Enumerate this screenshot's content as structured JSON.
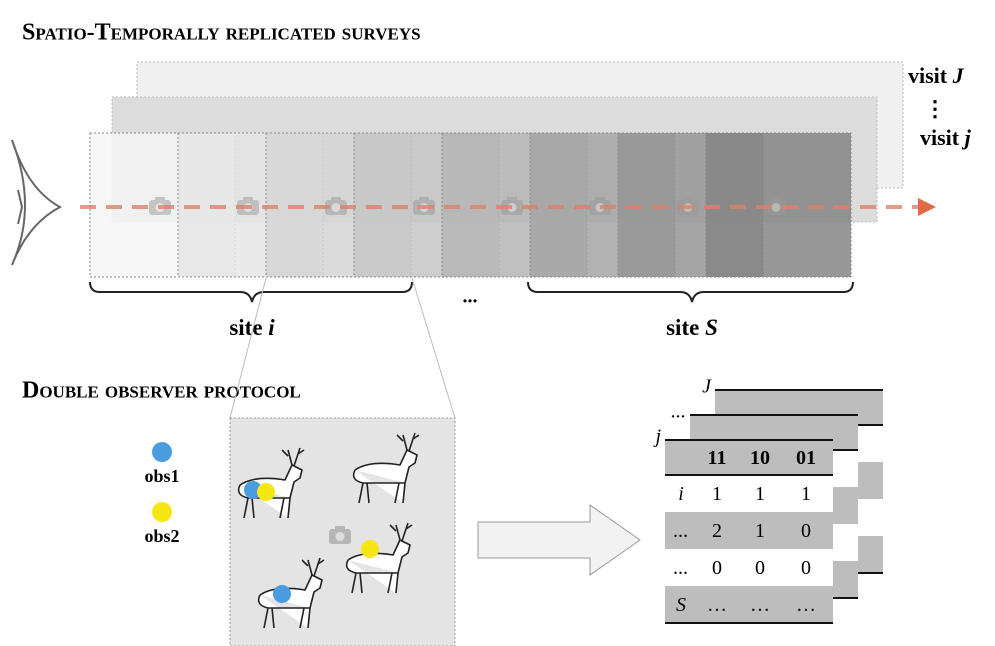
{
  "top_section": {
    "title": "Spatio-Temporally replicated surveys",
    "visit_last": {
      "word": "visit",
      "index": "J"
    },
    "visit_dots": "⋮",
    "visit_current": {
      "word": "visit",
      "index": "j"
    },
    "site_first": {
      "word": "site",
      "index": "i"
    },
    "site_gap": "...",
    "site_last": {
      "word": "site",
      "index": "S"
    }
  },
  "bottom_section": {
    "title": "Double observer protocol",
    "legend": [
      {
        "label": "obs1",
        "color": "#4a9be0"
      },
      {
        "label": "obs2",
        "color": "#f5e614"
      }
    ],
    "stack_labels": [
      "J",
      "...",
      "j"
    ],
    "table": {
      "header": [
        "11",
        "10",
        "01"
      ],
      "rows": [
        [
          "i",
          "1",
          "1",
          "1"
        ],
        [
          "...",
          "2",
          "1",
          "0"
        ],
        [
          "...",
          "0",
          "0",
          "0"
        ],
        [
          "S",
          "…",
          "…",
          "…"
        ]
      ]
    }
  }
}
